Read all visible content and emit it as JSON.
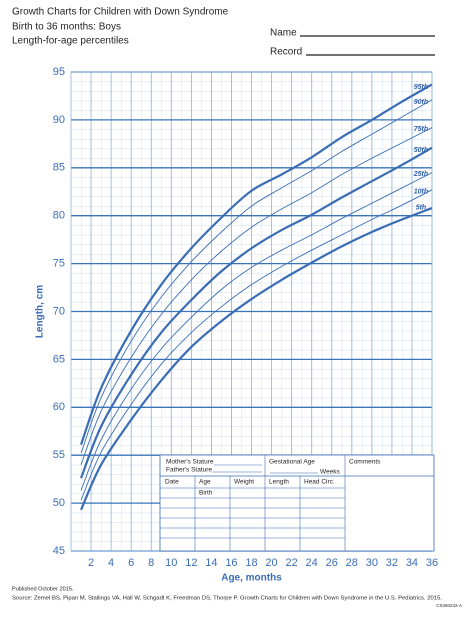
{
  "header": {
    "title": [
      "Growth Charts for Children with Down Syndrome",
      "Birth to 36 months: Boys",
      "Length-for-age percentiles"
    ],
    "name_label": "Name",
    "record_label": "Record"
  },
  "chart_data": {
    "type": "line",
    "y_label": "Length, cm",
    "x_label": "Age, months",
    "x": [
      1,
      3,
      6,
      9,
      12,
      15,
      18,
      21,
      24,
      27,
      30,
      33,
      36
    ],
    "series": [
      {
        "name": "95th",
        "color": "#3a6db5",
        "width": 2.2,
        "values": [
          56.1,
          62.0,
          68.0,
          72.8,
          76.6,
          79.8,
          82.6,
          84.3,
          86.1,
          88.2,
          90.0,
          91.9,
          93.7
        ]
      },
      {
        "name": "90th",
        "color": "#3a6db5",
        "width": 0.9,
        "values": [
          55.2,
          61.0,
          66.9,
          71.5,
          75.2,
          78.3,
          81.0,
          82.9,
          84.7,
          86.7,
          88.5,
          90.3,
          92.1
        ]
      },
      {
        "name": "75th",
        "color": "#3a6db5",
        "width": 0.9,
        "values": [
          54.0,
          59.6,
          65.2,
          69.7,
          73.3,
          76.3,
          78.8,
          80.7,
          82.4,
          84.3,
          86.0,
          87.6,
          89.2
        ]
      },
      {
        "name": "50th",
        "color": "#3a6db5",
        "width": 2.2,
        "values": [
          52.6,
          58.0,
          63.4,
          67.8,
          71.2,
          74.2,
          76.6,
          78.5,
          80.1,
          81.9,
          83.6,
          85.3,
          87.1
        ]
      },
      {
        "name": "25th",
        "color": "#3a6db5",
        "width": 0.9,
        "values": [
          51.3,
          56.6,
          61.9,
          66.1,
          69.4,
          72.3,
          74.6,
          76.4,
          78.0,
          79.7,
          81.3,
          82.9,
          84.5
        ]
      },
      {
        "name": "10th",
        "color": "#3a6db5",
        "width": 0.9,
        "values": [
          50.3,
          55.3,
          60.3,
          64.5,
          67.8,
          70.5,
          72.8,
          74.7,
          76.4,
          78.0,
          79.6,
          81.1,
          82.7
        ]
      },
      {
        "name": "5th",
        "color": "#3a6db5",
        "width": 2.2,
        "values": [
          49.3,
          54.0,
          58.7,
          62.8,
          66.3,
          69.0,
          71.3,
          73.3,
          75.1,
          76.8,
          78.3,
          79.6,
          80.8
        ]
      }
    ],
    "xlim": [
      0,
      36
    ],
    "xticks": [
      2,
      4,
      6,
      8,
      10,
      12,
      14,
      16,
      18,
      20,
      22,
      24,
      26,
      28,
      30,
      32,
      34,
      36
    ],
    "ylim": [
      45,
      95
    ],
    "yticks": [
      45,
      50,
      55,
      60,
      65,
      70,
      75,
      80,
      85,
      90,
      95
    ],
    "grid": true,
    "grid_color": "#3a74b8"
  },
  "form": {
    "mothers_stature": "Mother's Stature",
    "fathers_stature": "Father's Stature",
    "gestational_age": "Gestational Age",
    "weeks": "Weeks",
    "comments": "Comments",
    "columns": [
      "Date",
      "Age",
      "Weight",
      "Length",
      "Head Circ."
    ],
    "birth": "Birth"
  },
  "footer": {
    "published": "Published October 2015.",
    "source": "Source: Zemel BS, Pipan M, Stallings VA, Hall W, Schgadt K, Freedman DS, Thorpe P. Growth Charts for Children with Down Syndrome in the U.S. Pediatrics. 2015.",
    "code": "CS260242-A"
  }
}
